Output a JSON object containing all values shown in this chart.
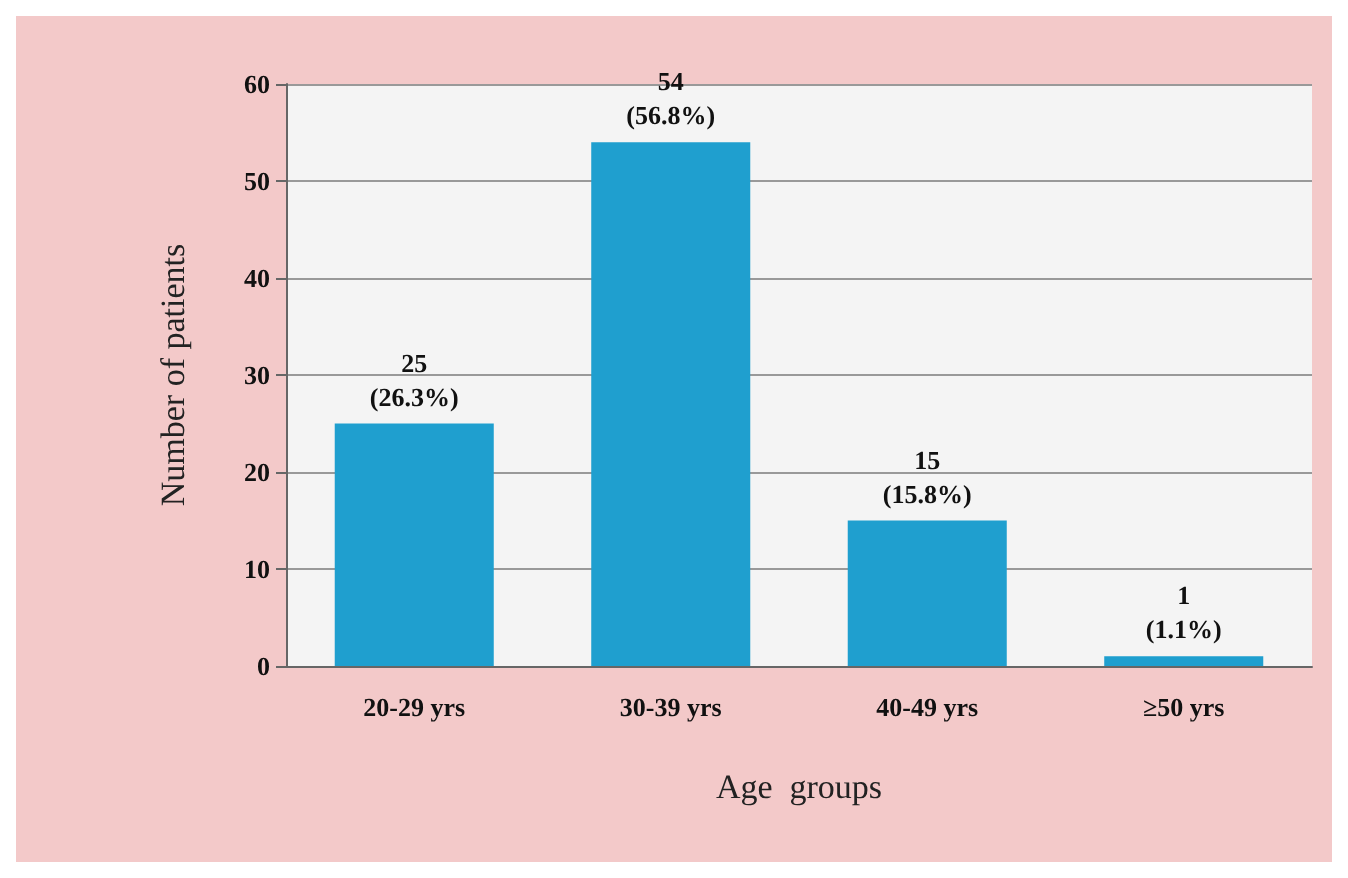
{
  "chart_data": {
    "type": "bar",
    "xlabel": "Age  groups",
    "ylabel": "Number of patients",
    "categories": [
      "20-29 yrs",
      "30-39 yrs",
      "40-49 yrs",
      "≥50 yrs"
    ],
    "values": [
      25,
      54,
      15,
      1
    ],
    "value_labels": [
      "25\n(26.3%)",
      "54\n(56.8%)",
      "15\n(15.8%)",
      "1\n(1.1%)"
    ],
    "color": "#1f9fcf",
    "ylim": [
      0,
      60
    ],
    "yticks": [
      0,
      10,
      20,
      30,
      40,
      50,
      60
    ],
    "grid": "y"
  }
}
